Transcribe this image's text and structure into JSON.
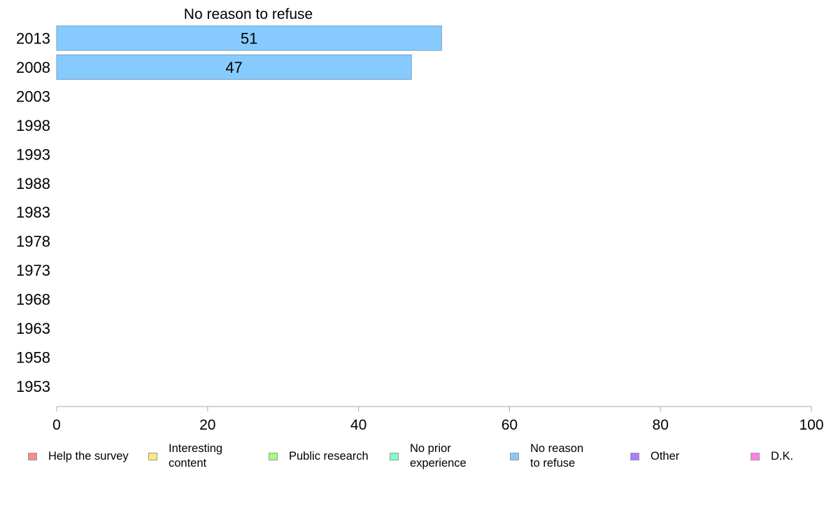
{
  "chart_data": {
    "type": "bar",
    "orientation": "horizontal",
    "stacked": true,
    "categories": [
      "2013",
      "2008",
      "2003",
      "1998",
      "1993",
      "1988",
      "1983",
      "1978",
      "1973",
      "1968",
      "1963",
      "1958",
      "1953"
    ],
    "series": [
      {
        "name": "Help the survey",
        "color": "#ff8a8a",
        "values": [
          null,
          null,
          null,
          null,
          null,
          null,
          null,
          null,
          null,
          null,
          null,
          null,
          null
        ]
      },
      {
        "name": "Interesting content",
        "color": "#ffe680",
        "values": [
          null,
          null,
          null,
          null,
          null,
          null,
          null,
          null,
          null,
          null,
          null,
          null,
          null
        ]
      },
      {
        "name": "Public research",
        "color": "#a3ff80",
        "values": [
          null,
          null,
          null,
          null,
          null,
          null,
          null,
          null,
          null,
          null,
          null,
          null,
          null
        ]
      },
      {
        "name": "No prior experience",
        "color": "#80ffc8",
        "values": [
          null,
          null,
          null,
          null,
          null,
          null,
          null,
          null,
          null,
          null,
          null,
          null,
          null
        ]
      },
      {
        "name": "No reason to refuse",
        "color": "#87cafe",
        "values": [
          51,
          47,
          null,
          null,
          null,
          null,
          null,
          null,
          null,
          null,
          null,
          null,
          null
        ]
      },
      {
        "name": "Other",
        "color": "#aa80ff",
        "values": [
          null,
          null,
          null,
          null,
          null,
          null,
          null,
          null,
          null,
          null,
          null,
          null,
          null
        ]
      },
      {
        "name": "D.K.",
        "color": "#ff80e8",
        "values": [
          null,
          null,
          null,
          null,
          null,
          null,
          null,
          null,
          null,
          null,
          null,
          null,
          null
        ]
      }
    ],
    "title": "No reason to refuse",
    "xlim": [
      0,
      100
    ],
    "xticks": [
      0,
      20,
      40,
      60,
      80,
      100
    ],
    "grid": false,
    "legend_position": "bottom"
  },
  "legend": [
    {
      "label": "Help the survey",
      "color": "#ff8a8a"
    },
    {
      "label": "Interesting\ncontent",
      "color": "#ffe680"
    },
    {
      "label": "Public research",
      "color": "#a3ff80"
    },
    {
      "label": "No prior\nexperience",
      "color": "#80ffc8"
    },
    {
      "label": "No reason\nto refuse",
      "color": "#87cafe"
    },
    {
      "label": "Other",
      "color": "#aa80ff"
    },
    {
      "label": "D.K.",
      "color": "#ff80e8"
    }
  ]
}
